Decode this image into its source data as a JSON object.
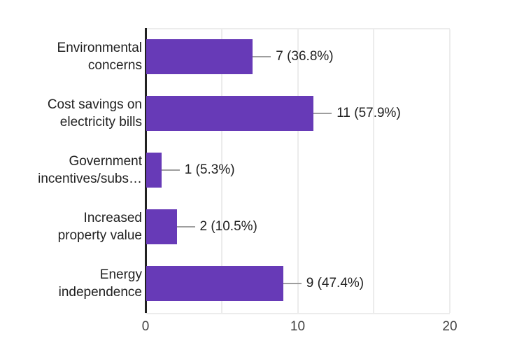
{
  "chart_data": {
    "type": "bar",
    "orientation": "horizontal",
    "title": "",
    "xlabel": "",
    "ylabel": "",
    "legend": "none",
    "categories": [
      "Environmental concerns",
      "Cost savings on electricity bills",
      "Government incentives/subs…",
      "Increased property value",
      "Energy independence"
    ],
    "category_display_lines": [
      [
        "Environmental",
        "concerns"
      ],
      [
        "Cost savings on",
        "electricity bills"
      ],
      [
        "Government",
        "incentives/subs…"
      ],
      [
        "Increased",
        "property value"
      ],
      [
        "Energy",
        "independence"
      ]
    ],
    "values": [
      7,
      11,
      1,
      2,
      9
    ],
    "value_labels": [
      "7 (36.8%)",
      "11 (57.9%)",
      "1 (5.3%)",
      "2 (10.5%)",
      "9 (47.4%)"
    ],
    "x_axis": {
      "range": [
        0,
        20
      ],
      "ticks": [
        {
          "label": "0",
          "value": 0
        },
        {
          "label": "10",
          "value": 10
        },
        {
          "label": "20",
          "value": 20
        }
      ],
      "gridline_values": [
        5,
        10,
        15,
        20
      ]
    },
    "colors": {
      "bar": "#673ab7",
      "callout_line": "#9e9e9e",
      "axis_line": "#212121",
      "gridline": "#ececec",
      "category_label_text": "#212121",
      "value_label_text": "#212121",
      "tick_label_text": "#424242",
      "background": "#ffffff"
    }
  }
}
